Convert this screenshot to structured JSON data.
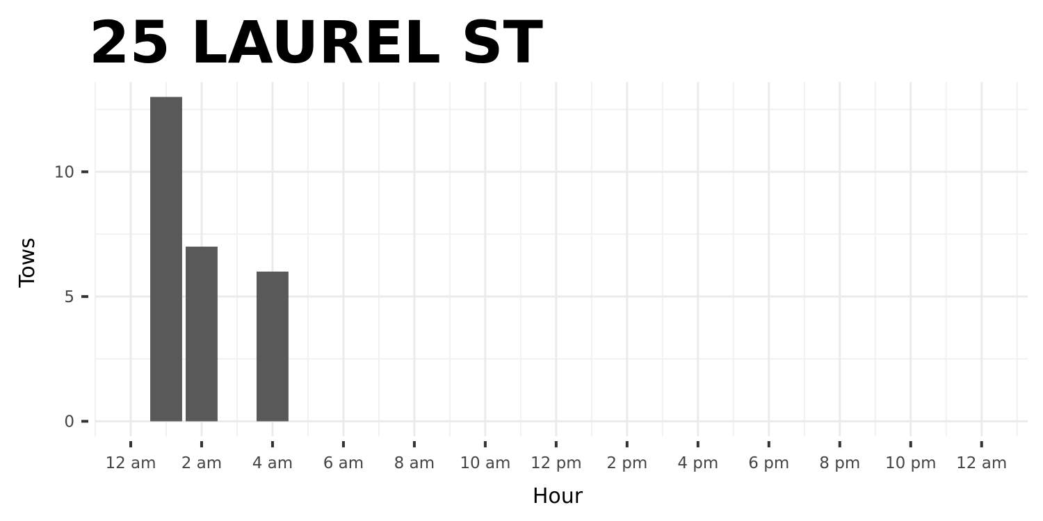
{
  "chart_data": {
    "type": "bar",
    "title": "25 LAUREL ST",
    "xlabel": "Hour",
    "ylabel": "Tows",
    "x": [
      1,
      2,
      4
    ],
    "values": [
      13,
      7,
      6
    ],
    "xlim": [
      -1,
      25.3
    ],
    "ylim": [
      -0.6,
      13.6
    ],
    "x_ticks": [
      0,
      2,
      4,
      6,
      8,
      10,
      12,
      14,
      16,
      18,
      20,
      22,
      24
    ],
    "x_tick_labels": [
      "12 am",
      "2 am",
      "4 am",
      "6 am",
      "8 am",
      "10 am",
      "12 pm",
      "2 pm",
      "4 pm",
      "6 pm",
      "8 pm",
      "10 pm",
      "12 am"
    ],
    "y_ticks": [
      0,
      5,
      10
    ],
    "y_tick_labels": [
      "0",
      "5",
      "10"
    ],
    "bar_color": "#595959",
    "grid": true,
    "legend": "none"
  }
}
